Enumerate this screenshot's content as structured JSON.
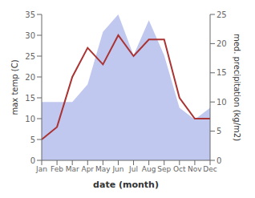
{
  "chart_data": {
    "type": "line",
    "categories": [
      "Jan",
      "Feb",
      "Mar",
      "Apr",
      "May",
      "Jun",
      "Jul",
      "Aug",
      "Sep",
      "Oct",
      "Nov",
      "Dec"
    ],
    "series": [
      {
        "type": "area",
        "axis": "y2",
        "color": "#c0c8f0",
        "values": [
          10,
          10,
          10,
          13,
          22,
          25,
          18,
          24,
          18,
          9,
          7,
          9
        ]
      },
      {
        "type": "line",
        "color": "#aa3333",
        "values": [
          5,
          8,
          20,
          27,
          23,
          30,
          25,
          29,
          29,
          15,
          10,
          10
        ]
      }
    ],
    "xlabel": "date (month)",
    "ylabel": "max temp (C)",
    "y2label": "med. precipitation (kg/m2)",
    "ylim": [
      0,
      35
    ],
    "yticks": [
      0,
      5,
      10,
      15,
      20,
      25,
      30,
      35
    ],
    "y2lim": [
      0,
      25
    ],
    "y2ticks": [
      0,
      5,
      10,
      15,
      20,
      25
    ],
    "grid": false
  }
}
